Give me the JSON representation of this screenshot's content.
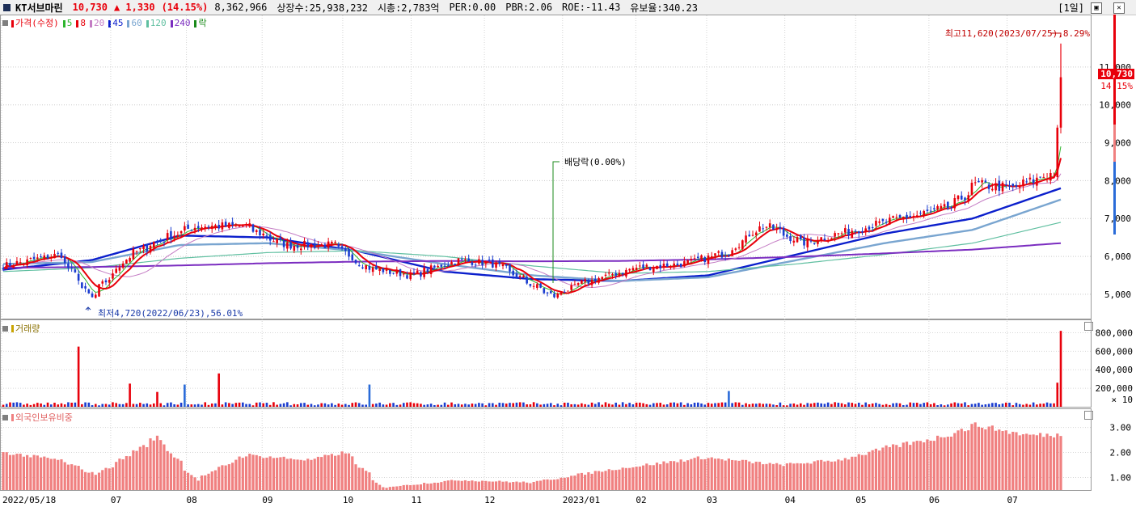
{
  "header": {
    "name": "KT서브마린",
    "price": "10,730",
    "change": "▲ 1,330",
    "change_pct": "(14.15%)",
    "volume": "8,362,966",
    "shares": "상장수:25,938,232",
    "mcap": "시총:2,783억",
    "per": "PER:0.00",
    "pbr": "PBR:2.06",
    "roe": "ROE:-11.43",
    "float": "유보율:340.23",
    "period": "[1일]"
  },
  "price_panel": {
    "legend": [
      {
        "label": "가격(수정)",
        "color": "#e8000b"
      },
      {
        "label": "5",
        "color": "#2db52d"
      },
      {
        "label": "8",
        "color": "#e8000b"
      },
      {
        "label": "20",
        "color": "#c47cc4"
      },
      {
        "label": "45",
        "color": "#0b1fcc"
      },
      {
        "label": "60",
        "color": "#79a5d0"
      },
      {
        "label": "120",
        "color": "#5fbfa0"
      },
      {
        "label": "240",
        "color": "#7b2dc0"
      },
      {
        "label": "락",
        "color": "#1a8a1a"
      }
    ],
    "max_note": "최고11,620(2023/07/25),8.29%",
    "min_note": "최저4,720(2022/06/23),56.01%",
    "dividend_note": "배당락(0.00%)",
    "last_tag": "10,730",
    "last_pct": "14.15%",
    "yticks": [
      "11,000",
      "10,000",
      "9,000",
      "8,000",
      "7,000",
      "6,000",
      "5,000"
    ]
  },
  "volume_panel": {
    "legend": "거래량",
    "yticks": [
      "800,000",
      "600,000",
      "400,000",
      "200,000"
    ],
    "unit": "× 10"
  },
  "foreign_panel": {
    "legend": "외국인보유비중",
    "yticks": [
      "3.00",
      "2.00",
      "1.00"
    ]
  },
  "xaxis": {
    "labels": [
      "2022/05/18",
      "07",
      "08",
      "09",
      "10",
      "11",
      "12",
      "2023/01",
      "02",
      "03",
      "04",
      "05",
      "06",
      "07"
    ]
  },
  "chart_data": {
    "type": "candlestick",
    "x_start": "2022/05/18",
    "x_end": "2023/07/25",
    "price_ylim": [
      4400,
      12300
    ],
    "price_anchors": [
      {
        "date": "2022/05/18",
        "close": 5750
      },
      {
        "date": "2022/06/10",
        "close": 6050
      },
      {
        "date": "2022/06/23",
        "close": 4900
      },
      {
        "date": "2022/07/08",
        "close": 6000
      },
      {
        "date": "2022/07/20",
        "close": 6400
      },
      {
        "date": "2022/08/05",
        "close": 6800
      },
      {
        "date": "2022/08/25",
        "close": 6800
      },
      {
        "date": "2022/09/10",
        "close": 6300
      },
      {
        "date": "2022/09/30",
        "close": 6300
      },
      {
        "date": "2022/10/14",
        "close": 5700
      },
      {
        "date": "2022/11/01",
        "close": 5500
      },
      {
        "date": "2022/11/20",
        "close": 5900
      },
      {
        "date": "2022/12/05",
        "close": 5800
      },
      {
        "date": "2022/12/29",
        "close": 4950
      },
      {
        "date": "2023/01/10",
        "close": 5300
      },
      {
        "date": "2023/02/01",
        "close": 5700
      },
      {
        "date": "2023/02/20",
        "close": 5800
      },
      {
        "date": "2023/03/10",
        "close": 6100
      },
      {
        "date": "2023/03/25",
        "close": 6850
      },
      {
        "date": "2023/04/10",
        "close": 6350
      },
      {
        "date": "2023/04/25",
        "close": 6600
      },
      {
        "date": "2023/05/20",
        "close": 7000
      },
      {
        "date": "2023/06/10",
        "close": 7300
      },
      {
        "date": "2023/06/20",
        "close": 7900
      },
      {
        "date": "2023/07/05",
        "close": 7800
      },
      {
        "date": "2023/07/21",
        "close": 8200
      },
      {
        "date": "2023/07/24",
        "close": 9400
      },
      {
        "date": "2023/07/25",
        "close": 10730
      }
    ],
    "ma_anchors": {
      "45": [
        5650,
        5900,
        6550,
        6500,
        6150,
        5600,
        5400,
        5350,
        5500,
        6050,
        6600,
        7000,
        7800
      ],
      "60": [
        5800,
        5850,
        6300,
        6350,
        6150,
        5800,
        5500,
        5350,
        5450,
        5900,
        6350,
        6700,
        7500
      ],
      "120": [
        5600,
        5700,
        5950,
        6100,
        6150,
        6000,
        5750,
        5550,
        5600,
        5800,
        6050,
        6350,
        6900
      ],
      "240": [
        5700,
        5720,
        5760,
        5820,
        5860,
        5880,
        5870,
        5880,
        5920,
        5990,
        6080,
        6180,
        6350
      ]
    },
    "volume_ylim": [
      0,
      900000
    ],
    "volume_spikes": [
      {
        "date": "2022/06/17",
        "value": 650000,
        "color": "red"
      },
      {
        "date": "2022/07/08",
        "value": 250000,
        "color": "red"
      },
      {
        "date": "2022/07/20",
        "value": 160000,
        "color": "red"
      },
      {
        "date": "2022/08/01",
        "value": 240000,
        "color": "blue"
      },
      {
        "date": "2022/08/15",
        "value": 360000,
        "color": "red"
      },
      {
        "date": "2022/10/14",
        "value": 240000,
        "color": "blue"
      },
      {
        "date": "2023/03/10",
        "value": 170000,
        "color": "blue"
      },
      {
        "date": "2023/07/24",
        "value": 260000,
        "color": "red"
      },
      {
        "date": "2023/07/25",
        "value": 820000,
        "color": "red"
      }
    ],
    "foreign_ylim": [
      0.5,
      3.6
    ],
    "foreign_anchors": [
      {
        "date": "2022/05/18",
        "value": 2.0
      },
      {
        "date": "2022/06/10",
        "value": 1.7
      },
      {
        "date": "2022/06/25",
        "value": 1.1
      },
      {
        "date": "2022/07/20",
        "value": 2.6
      },
      {
        "date": "2022/08/05",
        "value": 0.9
      },
      {
        "date": "2022/08/25",
        "value": 1.9
      },
      {
        "date": "2022/09/20",
        "value": 1.7
      },
      {
        "date": "2022/10/05",
        "value": 2.0
      },
      {
        "date": "2022/10/20",
        "value": 0.6
      },
      {
        "date": "2022/11/20",
        "value": 0.9
      },
      {
        "date": "2022/12/20",
        "value": 0.8
      },
      {
        "date": "2023/01/20",
        "value": 1.3
      },
      {
        "date": "2023/03/01",
        "value": 1.8
      },
      {
        "date": "2023/04/01",
        "value": 1.5
      },
      {
        "date": "2023/04/25",
        "value": 1.7
      },
      {
        "date": "2023/05/15",
        "value": 2.2
      },
      {
        "date": "2023/06/05",
        "value": 2.6
      },
      {
        "date": "2023/06/20",
        "value": 3.1
      },
      {
        "date": "2023/07/10",
        "value": 2.7
      },
      {
        "date": "2023/07/25",
        "value": 2.7
      }
    ]
  }
}
